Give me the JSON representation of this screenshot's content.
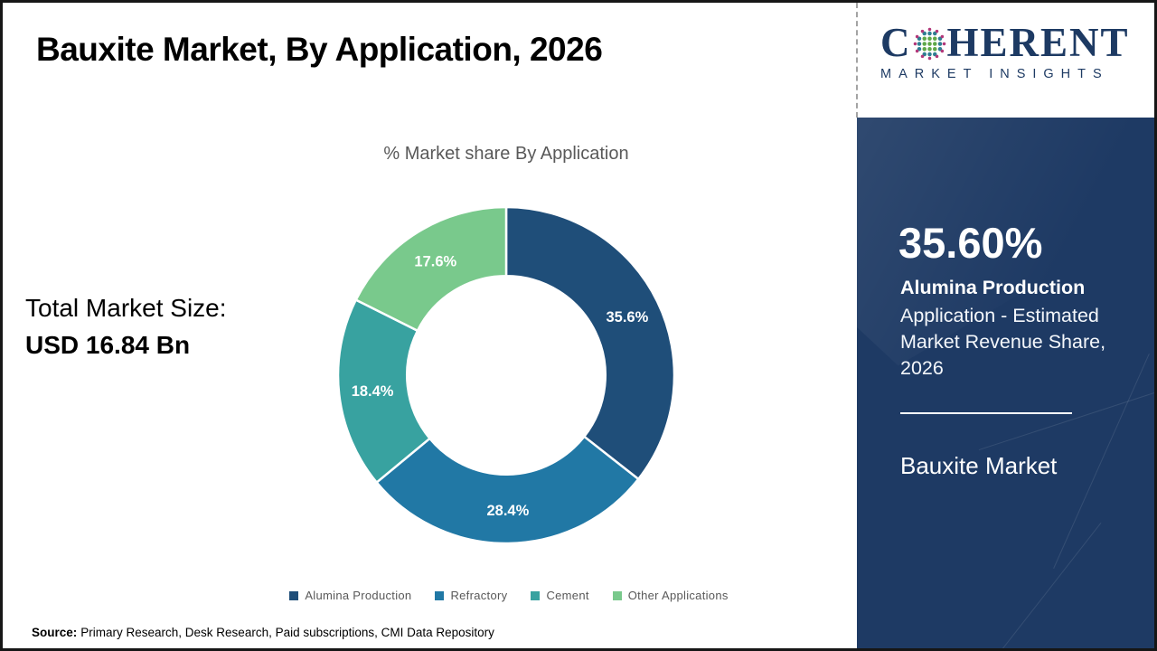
{
  "page": {
    "title": "Bauxite Market, By Application, 2026",
    "source_label": "Source:",
    "source_text": "Primary Research, Desk Research, Paid subscriptions, CMI Data Repository"
  },
  "logo": {
    "prefix": "C",
    "suffix": "HERENT",
    "subtitle": "MARKET INSIGHTS",
    "text_color": "#1d3a63",
    "globe_colors": {
      "core": "#5fa848",
      "mid": "#2f7f93",
      "outer": "#b23779"
    }
  },
  "left_panel": {
    "total_label": "Total Market Size:",
    "total_value": "USD 16.84 Bn"
  },
  "chart_data": {
    "type": "pie",
    "subtype": "donut",
    "title": "% Market share By Application",
    "categories": [
      "Alumina Production",
      "Refractory",
      "Cement",
      "Other Applications"
    ],
    "values": [
      35.6,
      28.4,
      18.4,
      17.6
    ],
    "display_labels": [
      "35.6%",
      "28.4%",
      "18.4%",
      "17.6%"
    ],
    "colors": [
      "#1f4e79",
      "#2178a5",
      "#38a2a0",
      "#79c98c"
    ],
    "start_angle_deg": 0,
    "direction": "clockwise",
    "donut_hole_ratio": 0.59,
    "separator_color": "#ffffff",
    "legend_position": "bottom",
    "units": "%"
  },
  "sidebar": {
    "stat_value": "35.60%",
    "stat_title": "Alumina Production",
    "stat_description": "Application - Estimated Market Revenue Share, 2026",
    "market_name": "Bauxite Market",
    "bg_color": "#1e3a64"
  }
}
